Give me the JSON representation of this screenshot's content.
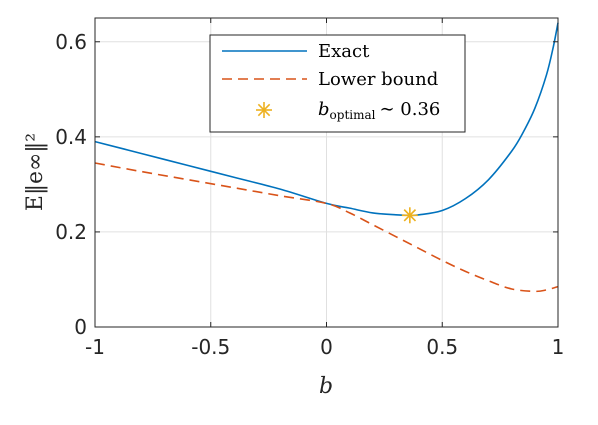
{
  "chart_data": {
    "type": "line",
    "xlabel": "b",
    "ylabel": "E‖e∞‖²",
    "xlim": [
      -1,
      1
    ],
    "ylim": [
      0,
      0.65
    ],
    "xticks": [
      -1,
      -0.5,
      0,
      0.5,
      1
    ],
    "xtick_labels": [
      "-1",
      "-0.5",
      "0",
      "0.5",
      "1"
    ],
    "yticks": [
      0,
      0.2,
      0.4,
      0.6
    ],
    "ytick_labels": [
      "0",
      "0.2",
      "0.4",
      "0.6"
    ],
    "grid": true,
    "legend_position": "top-right",
    "series": [
      {
        "name": "Exact",
        "style": "solid",
        "color": "#0072bd",
        "x": [
          -1,
          -0.8,
          -0.6,
          -0.4,
          -0.2,
          0,
          0.1,
          0.2,
          0.3,
          0.36,
          0.4,
          0.5,
          0.6,
          0.7,
          0.8,
          0.85,
          0.9,
          0.95,
          0.98,
          1.0
        ],
        "y": [
          0.39,
          0.365,
          0.34,
          0.315,
          0.29,
          0.26,
          0.25,
          0.24,
          0.236,
          0.235,
          0.236,
          0.245,
          0.27,
          0.31,
          0.37,
          0.41,
          0.46,
          0.53,
          0.59,
          0.64
        ]
      },
      {
        "name": "Lower bound",
        "style": "dashed",
        "color": "#d95319",
        "x": [
          -1,
          -0.8,
          -0.6,
          -0.4,
          -0.2,
          0,
          0.1,
          0.2,
          0.3,
          0.4,
          0.5,
          0.6,
          0.7,
          0.8,
          0.9,
          0.95,
          1.0
        ],
        "y": [
          0.345,
          0.327,
          0.31,
          0.293,
          0.276,
          0.26,
          0.24,
          0.215,
          0.19,
          0.165,
          0.14,
          0.117,
          0.097,
          0.08,
          0.075,
          0.078,
          0.085
        ]
      },
      {
        "name": "b_optimal ∼ 0.36",
        "style": "marker",
        "marker": "asterisk",
        "color": "#edb120",
        "x": [
          0.36
        ],
        "y": [
          0.235
        ]
      }
    ],
    "legend": {
      "entries": [
        {
          "label": "Exact"
        },
        {
          "label": "Lower bound"
        },
        {
          "label_main": "b",
          "label_sub": "optimal",
          "label_rest": "∼ 0.36"
        }
      ]
    }
  }
}
